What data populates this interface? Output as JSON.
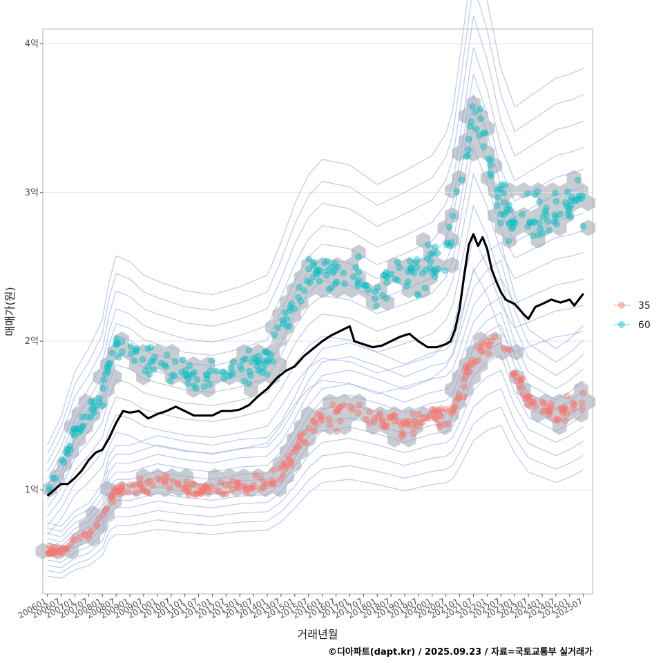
{
  "chart_data": {
    "type": "scatter",
    "xlabel": "거래년월",
    "ylabel": "매매가(원)",
    "caption": "©디아파트(dapt.kr) / 2025.09.23 / 자료=국토교통부 실거래가",
    "x_tick_labels": [
      "200601",
      "200607",
      "200701",
      "200707",
      "200801",
      "200807",
      "200901",
      "200907",
      "201001",
      "201007",
      "201101",
      "201107",
      "201201",
      "201207",
      "201301",
      "201307",
      "201401",
      "201407",
      "201501",
      "201507",
      "201601",
      "201607",
      "201701",
      "201707",
      "201801",
      "201807",
      "201901",
      "201907",
      "202001",
      "202007",
      "202101",
      "202107",
      "202201",
      "202207",
      "202301",
      "202307",
      "202401",
      "202407",
      "202501",
      "202507"
    ],
    "y_ticks": [
      {
        "value": 100000000,
        "label": "1억"
      },
      {
        "value": 200000000,
        "label": "2억"
      },
      {
        "value": 300000000,
        "label": "3억"
      },
      {
        "value": 400000000,
        "label": "4억"
      }
    ],
    "xlim": [
      -2,
      238
    ],
    "ylim": [
      30000000,
      410000000
    ],
    "grid": true,
    "legend_position": "right",
    "series": [
      {
        "name": "35",
        "color": "#F8766D",
        "trend": [
          [
            0,
            60000000
          ],
          [
            6,
            58000000
          ],
          [
            12,
            66000000
          ],
          [
            18,
            70000000
          ],
          [
            24,
            80000000
          ],
          [
            27,
            95000000
          ],
          [
            30,
            100000000
          ],
          [
            36,
            100000000
          ],
          [
            48,
            105000000
          ],
          [
            60,
            102000000
          ],
          [
            72,
            100000000
          ],
          [
            84,
            103000000
          ],
          [
            96,
            104000000
          ],
          [
            102,
            112000000
          ],
          [
            108,
            125000000
          ],
          [
            114,
            140000000
          ],
          [
            120,
            150000000
          ],
          [
            132,
            153000000
          ],
          [
            144,
            148000000
          ],
          [
            156,
            142000000
          ],
          [
            168,
            148000000
          ],
          [
            176,
            150000000
          ],
          [
            180,
            165000000
          ],
          [
            186,
            190000000
          ],
          [
            192,
            200000000
          ],
          [
            198,
            205000000
          ],
          [
            204,
            178000000
          ],
          [
            210,
            160000000
          ],
          [
            216,
            155000000
          ],
          [
            222,
            150000000
          ],
          [
            228,
            155000000
          ],
          [
            234,
            162000000
          ]
        ]
      },
      {
        "name": "60",
        "color": "#00BFC4",
        "trend": [
          [
            0,
            100000000
          ],
          [
            6,
            115000000
          ],
          [
            12,
            138000000
          ],
          [
            18,
            150000000
          ],
          [
            24,
            165000000
          ],
          [
            27,
            185000000
          ],
          [
            30,
            198000000
          ],
          [
            36,
            195000000
          ],
          [
            42,
            188000000
          ],
          [
            48,
            185000000
          ],
          [
            60,
            180000000
          ],
          [
            72,
            178000000
          ],
          [
            84,
            182000000
          ],
          [
            96,
            188000000
          ],
          [
            102,
            205000000
          ],
          [
            108,
            225000000
          ],
          [
            114,
            240000000
          ],
          [
            120,
            248000000
          ],
          [
            132,
            245000000
          ],
          [
            144,
            235000000
          ],
          [
            156,
            242000000
          ],
          [
            168,
            250000000
          ],
          [
            176,
            265000000
          ],
          [
            180,
            300000000
          ],
          [
            186,
            355000000
          ],
          [
            192,
            330000000
          ],
          [
            198,
            295000000
          ],
          [
            204,
            275000000
          ],
          [
            210,
            280000000
          ],
          [
            216,
            285000000
          ],
          [
            222,
            290000000
          ],
          [
            228,
            292000000
          ],
          [
            234,
            295000000
          ]
        ]
      }
    ],
    "average_line": [
      [
        0,
        96000000
      ],
      [
        3,
        100000000
      ],
      [
        6,
        104000000
      ],
      [
        9,
        104000000
      ],
      [
        12,
        108000000
      ],
      [
        15,
        113000000
      ],
      [
        18,
        120000000
      ],
      [
        21,
        125000000
      ],
      [
        24,
        127000000
      ],
      [
        27,
        135000000
      ],
      [
        30,
        145000000
      ],
      [
        33,
        153000000
      ],
      [
        36,
        152000000
      ],
      [
        40,
        153000000
      ],
      [
        44,
        148000000
      ],
      [
        48,
        151000000
      ],
      [
        52,
        153000000
      ],
      [
        56,
        156000000
      ],
      [
        60,
        153000000
      ],
      [
        64,
        150000000
      ],
      [
        68,
        150000000
      ],
      [
        72,
        150000000
      ],
      [
        76,
        153000000
      ],
      [
        80,
        153000000
      ],
      [
        84,
        154000000
      ],
      [
        88,
        157000000
      ],
      [
        92,
        163000000
      ],
      [
        96,
        168000000
      ],
      [
        100,
        175000000
      ],
      [
        104,
        180000000
      ],
      [
        108,
        183000000
      ],
      [
        112,
        190000000
      ],
      [
        116,
        195000000
      ],
      [
        120,
        200000000
      ],
      [
        124,
        204000000
      ],
      [
        128,
        207000000
      ],
      [
        132,
        210000000
      ],
      [
        134,
        200000000
      ],
      [
        138,
        198000000
      ],
      [
        142,
        196000000
      ],
      [
        146,
        197000000
      ],
      [
        150,
        200000000
      ],
      [
        154,
        203000000
      ],
      [
        158,
        205000000
      ],
      [
        162,
        200000000
      ],
      [
        166,
        196000000
      ],
      [
        170,
        196000000
      ],
      [
        174,
        198000000
      ],
      [
        176,
        200000000
      ],
      [
        178,
        208000000
      ],
      [
        180,
        222000000
      ],
      [
        182,
        245000000
      ],
      [
        184,
        265000000
      ],
      [
        186,
        272000000
      ],
      [
        188,
        264000000
      ],
      [
        190,
        270000000
      ],
      [
        192,
        262000000
      ],
      [
        194,
        248000000
      ],
      [
        196,
        240000000
      ],
      [
        198,
        233000000
      ],
      [
        200,
        228000000
      ],
      [
        204,
        225000000
      ],
      [
        208,
        218000000
      ],
      [
        210,
        215000000
      ],
      [
        213,
        223000000
      ],
      [
        216,
        225000000
      ],
      [
        220,
        228000000
      ],
      [
        224,
        226000000
      ],
      [
        228,
        228000000
      ],
      [
        230,
        224000000
      ],
      [
        234,
        232000000
      ]
    ]
  }
}
